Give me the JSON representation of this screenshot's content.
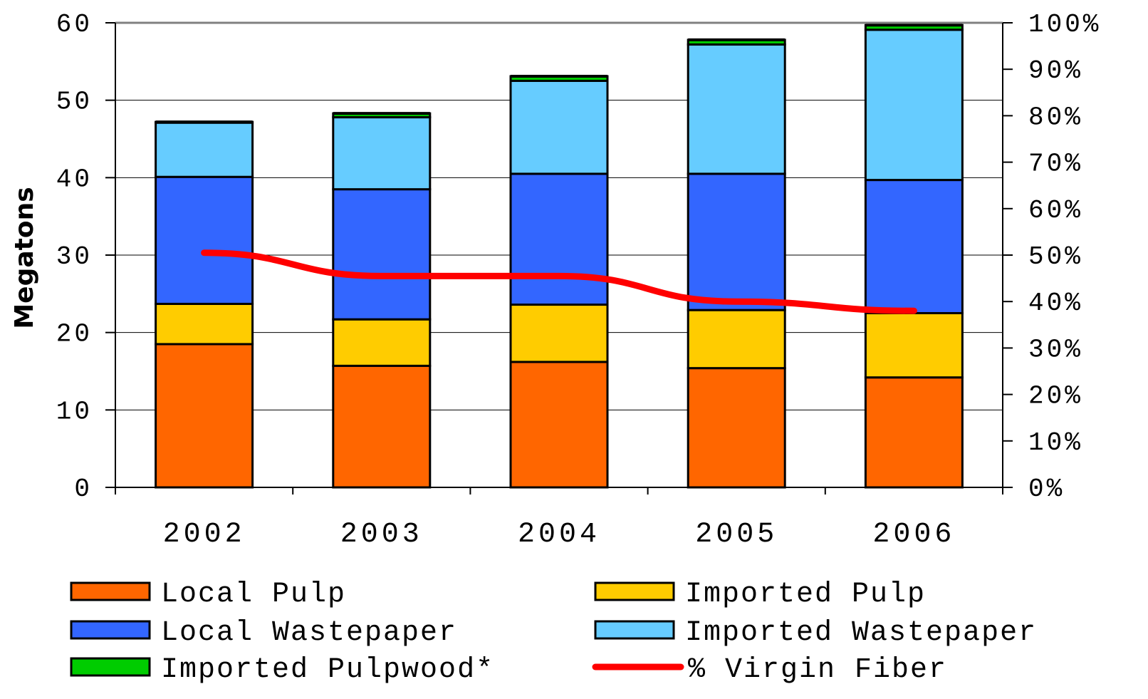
{
  "colors": {
    "local_pulp": "#ff6600",
    "imported_pulp": "#ffcc00",
    "local_wastepaper": "#3366ff",
    "imported_wastepaper": "#66ccff",
    "imported_pulpwood": "#00cc00",
    "virgin_fiber": "#ff0000"
  },
  "chart_data": {
    "type": "bar",
    "stacked": true,
    "categories": [
      "2002",
      "2003",
      "2004",
      "2005",
      "2006"
    ],
    "ylabel": "Megatons",
    "ylim": [
      0,
      60
    ],
    "yticks": [
      "0",
      "10",
      "20",
      "30",
      "40",
      "50",
      "60"
    ],
    "y2lim": [
      0,
      100
    ],
    "y2ticks": [
      "0%",
      "10%",
      "20%",
      "30%",
      "40%",
      "50%",
      "60%",
      "70%",
      "80%",
      "90%",
      "100%"
    ],
    "grid": true,
    "legend_position": "bottom",
    "series": [
      {
        "name": "Local Pulp",
        "key": "local_pulp",
        "values": [
          18.5,
          15.7,
          16.2,
          15.4,
          14.2
        ]
      },
      {
        "name": "Imported Pulp",
        "key": "imported_pulp",
        "values": [
          5.2,
          6.0,
          7.4,
          7.5,
          8.3
        ]
      },
      {
        "name": "Local Wastepaper",
        "key": "local_wastepaper",
        "values": [
          16.4,
          16.8,
          16.9,
          17.6,
          17.2
        ]
      },
      {
        "name": "Imported Wastepaper",
        "key": "imported_wastepaper",
        "values": [
          7.0,
          9.3,
          12.0,
          16.7,
          19.4
        ]
      },
      {
        "name": "Imported Pulpwood*",
        "key": "imported_pulpwood",
        "values": [
          0.1,
          0.5,
          0.6,
          0.6,
          0.6
        ]
      }
    ],
    "line_series": {
      "name": "% Virgin Fiber",
      "key": "virgin_fiber",
      "axis": "right",
      "values": [
        50.5,
        45.5,
        45.5,
        40.0,
        38.0
      ]
    }
  }
}
